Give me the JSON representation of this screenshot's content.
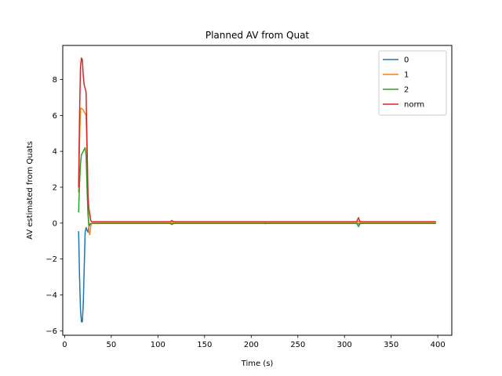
{
  "chart_data": {
    "type": "line",
    "title": "Planned AV from Quat",
    "xlabel": "Time (s)",
    "ylabel": "AV estimated from Quats",
    "xlim": [
      -2,
      415
    ],
    "ylim": [
      -6.25,
      9.9
    ],
    "xticks": [
      0,
      50,
      100,
      150,
      200,
      250,
      300,
      350,
      400
    ],
    "yticks": [
      -6,
      -4,
      -2,
      0,
      2,
      4,
      6,
      8
    ],
    "grid": false,
    "legend_position": "top-right",
    "series": [
      {
        "name": "0",
        "color": "#1f77b4",
        "x": [
          15,
          16,
          17,
          18,
          19,
          20,
          21,
          22,
          23,
          24,
          25,
          26,
          27,
          28,
          29,
          30,
          113,
          114,
          115,
          116,
          117,
          214,
          215,
          216,
          313,
          314,
          315,
          316,
          317,
          398
        ],
        "y": [
          -0.45,
          -3.0,
          -4.8,
          -5.5,
          -5.5,
          -4.5,
          -2.5,
          -0.5,
          -0.25,
          -0.4,
          -0.5,
          -0.2,
          -0.1,
          -0.02,
          -0.02,
          -0.02,
          -0.02,
          -0.03,
          -0.05,
          -0.03,
          -0.02,
          -0.02,
          -0.01,
          -0.02,
          -0.02,
          -0.03,
          -0.04,
          -0.03,
          -0.02,
          -0.02
        ]
      },
      {
        "name": "1",
        "color": "#ff7f0e",
        "x": [
          15,
          16,
          17,
          18,
          19,
          20,
          21,
          22,
          23,
          24,
          25,
          26,
          27,
          28,
          29,
          30,
          113,
          114,
          115,
          116,
          117,
          214,
          215,
          216,
          313,
          314,
          315,
          316,
          317,
          398
        ],
        "y": [
          1.7,
          4.5,
          6.4,
          6.4,
          6.35,
          6.3,
          6.2,
          6.1,
          6.0,
          4.0,
          1.5,
          -0.5,
          -0.65,
          -0.15,
          -0.02,
          0.0,
          0.0,
          0.02,
          0.05,
          0.03,
          0.0,
          0.0,
          0.01,
          0.0,
          0.0,
          0.05,
          0.1,
          0.05,
          0.0,
          0.0
        ]
      },
      {
        "name": "2",
        "color": "#2ca02c",
        "x": [
          15,
          16,
          17,
          18,
          19,
          20,
          21,
          22,
          23,
          24,
          25,
          26,
          27,
          28,
          29,
          30,
          113,
          114,
          115,
          116,
          117,
          214,
          215,
          216,
          313,
          314,
          315,
          316,
          317,
          398
        ],
        "y": [
          0.6,
          2.2,
          3.3,
          3.8,
          3.9,
          4.0,
          4.1,
          4.2,
          3.8,
          2.0,
          0.5,
          -0.1,
          -0.05,
          -0.02,
          -0.02,
          -0.02,
          -0.02,
          -0.05,
          -0.08,
          -0.05,
          -0.02,
          -0.02,
          -0.03,
          -0.02,
          -0.02,
          -0.1,
          -0.2,
          -0.1,
          -0.02,
          -0.02
        ]
      },
      {
        "name": "norm",
        "color": "#d62728",
        "x": [
          15,
          16,
          17,
          18,
          19,
          20,
          21,
          22,
          23,
          24,
          25,
          26,
          27,
          28,
          29,
          30,
          113,
          114,
          115,
          116,
          117,
          214,
          215,
          216,
          313,
          314,
          315,
          316,
          317,
          398
        ],
        "y": [
          2.0,
          6.0,
          8.7,
          9.2,
          9.1,
          8.2,
          7.7,
          7.5,
          7.3,
          4.5,
          1.6,
          0.8,
          0.5,
          0.15,
          0.08,
          0.08,
          0.08,
          0.1,
          0.15,
          0.1,
          0.08,
          0.08,
          0.06,
          0.08,
          0.08,
          0.2,
          0.3,
          0.15,
          0.08,
          0.08
        ]
      }
    ]
  }
}
